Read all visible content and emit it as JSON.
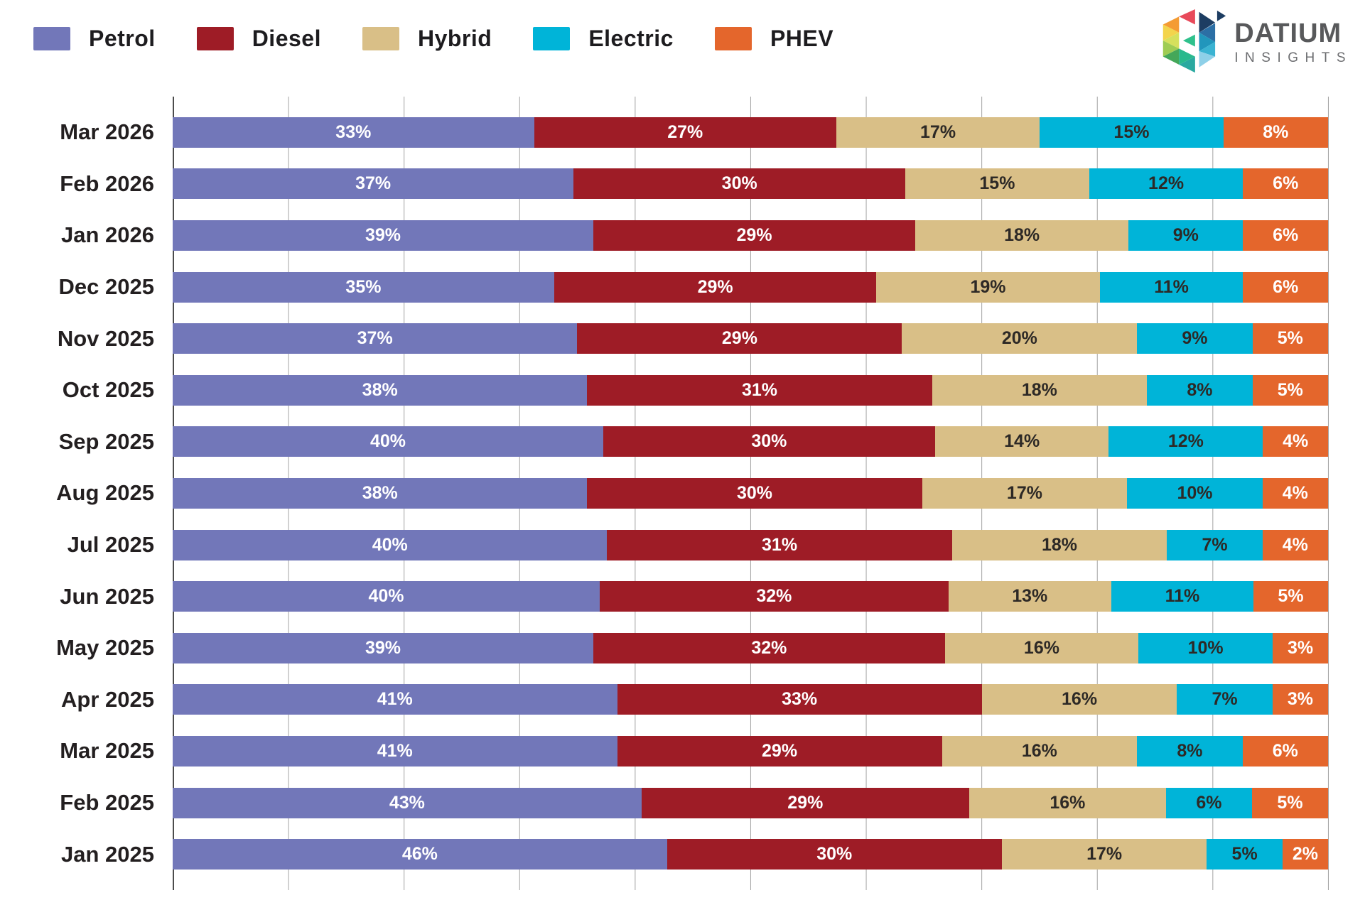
{
  "header": {
    "legend": [
      {
        "label": "Petrol",
        "color": "#7277b9"
      },
      {
        "label": "Diesel",
        "color": "#9e1c26"
      },
      {
        "label": "Hybrid",
        "color": "#d9bf87"
      },
      {
        "label": "Electric",
        "color": "#00b4d8"
      },
      {
        "label": "PHEV",
        "color": "#e4662c"
      }
    ],
    "logo": {
      "title": "DATIUM",
      "subtitle": "INSIGHTS"
    }
  },
  "chart_data": {
    "type": "bar",
    "stacked": true,
    "orientation": "horizontal",
    "unit": "%",
    "xlim": [
      0,
      100
    ],
    "gridline_interval": 10,
    "grid": true,
    "legend_position": "top-left",
    "categories": [
      "Mar 2026",
      "Feb 2026",
      "Jan 2026",
      "Dec 2025",
      "Nov 2025",
      "Oct 2025",
      "Sep 2025",
      "Aug 2025",
      "Jul 2025",
      "Jun 2025",
      "May 2025",
      "Apr 2025",
      "Mar 2025",
      "Feb 2025",
      "Jan 2025"
    ],
    "series": [
      {
        "name": "Petrol",
        "color": "#7277b9",
        "label_color": "#ffffff",
        "values": [
          33,
          37,
          39,
          35,
          37,
          38,
          40,
          38,
          40,
          40,
          39,
          41,
          41,
          43,
          46
        ]
      },
      {
        "name": "Diesel",
        "color": "#9e1c26",
        "label_color": "#ffffff",
        "values": [
          27,
          30,
          29,
          29,
          29,
          31,
          30,
          30,
          31,
          32,
          32,
          33,
          29,
          29,
          30
        ]
      },
      {
        "name": "Hybrid",
        "color": "#d9bf87",
        "label_color": "#2d2926",
        "values": [
          17,
          15,
          18,
          19,
          20,
          18,
          14,
          17,
          18,
          13,
          16,
          16,
          16,
          16,
          17
        ]
      },
      {
        "name": "Electric",
        "color": "#00b4d8",
        "label_color": "#2d2926",
        "values": [
          15,
          12,
          9,
          11,
          9,
          8,
          12,
          10,
          7,
          11,
          10,
          7,
          8,
          6,
          5
        ]
      },
      {
        "name": "PHEV",
        "color": "#e4662c",
        "label_color": "#ffffff",
        "values": [
          8,
          6,
          6,
          6,
          5,
          5,
          4,
          4,
          4,
          5,
          3,
          3,
          6,
          5,
          2
        ]
      }
    ]
  }
}
